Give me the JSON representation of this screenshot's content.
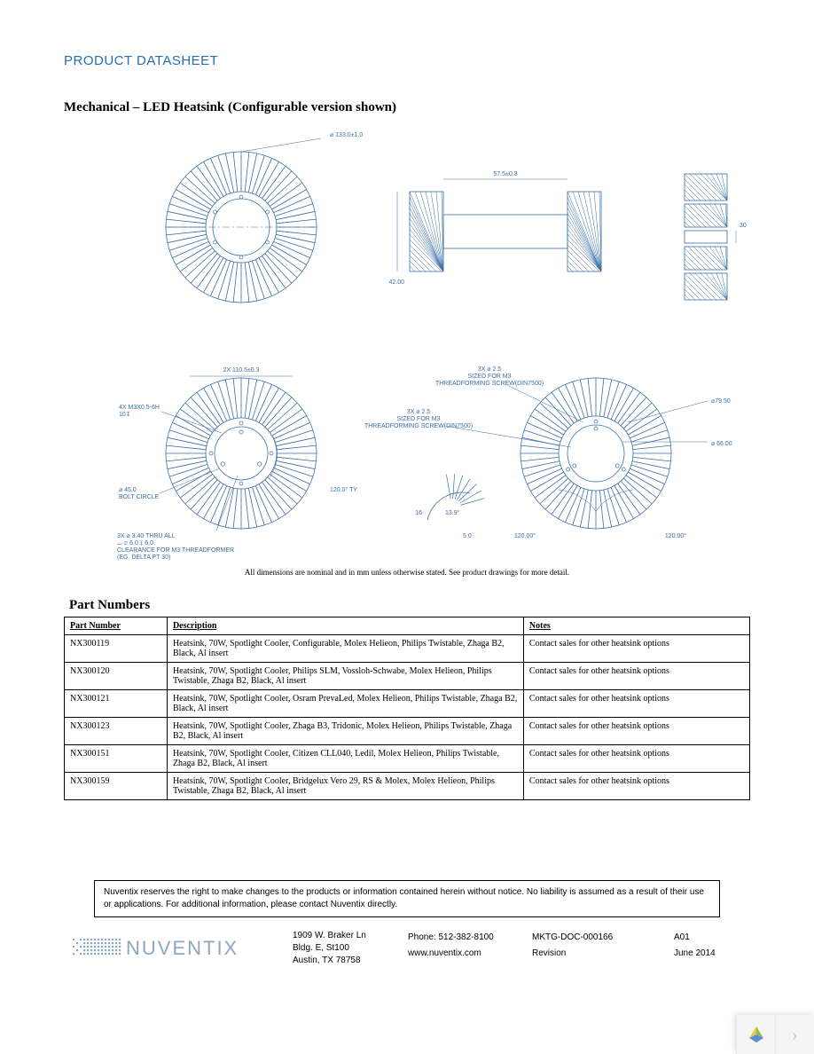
{
  "header": {
    "title": "PRODUCT DATASHEET"
  },
  "section": {
    "title": "Mechanical – LED Heatsink (Configurable version shown)",
    "caption": "All dimensions are nominal and in mm unless otherwise stated. See product drawings for more detail."
  },
  "drawing": {
    "stroke": "#3a6ea5",
    "font_family": "Arial, Helvetica, sans-serif",
    "label_fontsize": 7,
    "top_ring": {
      "outer_d": 133.0,
      "tol": 1.0,
      "hub_d_ratio": 0.4,
      "fin_count": 60
    },
    "side_view": {
      "width": 57.5,
      "tol": 0.3,
      "height": 42.0,
      "inner_h": 30.0
    },
    "bottom_left_ring": {
      "bc_dia": 110.5,
      "bc_tol": 0.3,
      "thread_note": "4X M3X0.5-6H\n10↧",
      "bolt_circle_note": "⌀ 45.0\nBOLT CIRCLE",
      "thru_note": "3X ⌀ 3.40 THRU ALL\n⌴ ⌀ 6.0 ↧ 6.0\nCLEARANCE FOR M3 THREADFORMER\n(EG. DELTA PT 30)",
      "angle": "120.0° TY"
    },
    "bottom_right_ring": {
      "note1": "3X ⌀ 2.5\nSIZED FOR M3\nTHREADFORMING SCREW(DIN7500)",
      "note2": "3X ⌀ 2.5\nSIZED FOR M3\nTHREADFORMING SCREW(DIN7500)",
      "outer_d": 79.5,
      "inner_d": 66.0,
      "angles": [
        "120.00°",
        "120.00°"
      ],
      "fin_detail": {
        "angle": "13.9°",
        "len": 5.0,
        "r": 16
      }
    }
  },
  "part_table": {
    "title": "Part Numbers",
    "columns": [
      "Part Number",
      "Description",
      "Notes"
    ],
    "rows": [
      {
        "pn": "NX300119",
        "desc": "Heatsink, 70W, Spotlight Cooler, Configurable, Molex Helieon, Philips Twistable, Zhaga B2, Black, Al insert",
        "notes": "Contact sales for other heatsink options"
      },
      {
        "pn": "NX300120",
        "desc": "Heatsink, 70W, Spotlight Cooler, Philips SLM, Vossloh-Schwabe, Molex Helieon, Philips Twistable, Zhaga B2, Black, Al insert",
        "notes": "Contact sales for other heatsink options"
      },
      {
        "pn": "NX300121",
        "desc": "Heatsink, 70W, Spotlight Cooler, Osram PrevaLed, Molex Helieon, Philips Twistable, Zhaga B2, Black, Al insert",
        "notes": "Contact sales for other heatsink options"
      },
      {
        "pn": "NX300123",
        "desc": "Heatsink, 70W, Spotlight Cooler, Zhaga B3, Tridonic, Molex Helieon, Philips Twistable, Zhaga B2, Black, Al insert",
        "notes": "Contact sales for other heatsink options"
      },
      {
        "pn": "NX300151",
        "desc": "Heatsink, 70W, Spotlight Cooler, Citizen CLL040, Ledil, Molex Helieon, Philips Twistable, Zhaga B2, Black, Al insert",
        "notes": "Contact sales for other heatsink options"
      },
      {
        "pn": "NX300159",
        "desc": "Heatsink, 70W, Spotlight Cooler, Bridgelux Vero 29, RS & Molex, Molex Helieon, Philips Twistable, Zhaga B2, Black, Al insert",
        "notes": "Contact sales for other heatsink options"
      }
    ]
  },
  "disclaimer": "Nuventix reserves the right to make changes to the products or information contained herein without notice.  No liability is assumed as a result of their use or applications. For additional information, please contact Nuventix directly.",
  "footer": {
    "logo_text": "NUVENTIX",
    "addr_l1": "1909 W. Braker Ln",
    "addr_l2": "Bldg. E, St100",
    "addr_l3": "Austin, TX 78758",
    "phone": "Phone: 512-382-8100",
    "web": "www.nuventix.com",
    "docid": "MKTG-DOC-000166",
    "rev_label": "Revision",
    "rev": "A01",
    "date": "June 2014"
  }
}
